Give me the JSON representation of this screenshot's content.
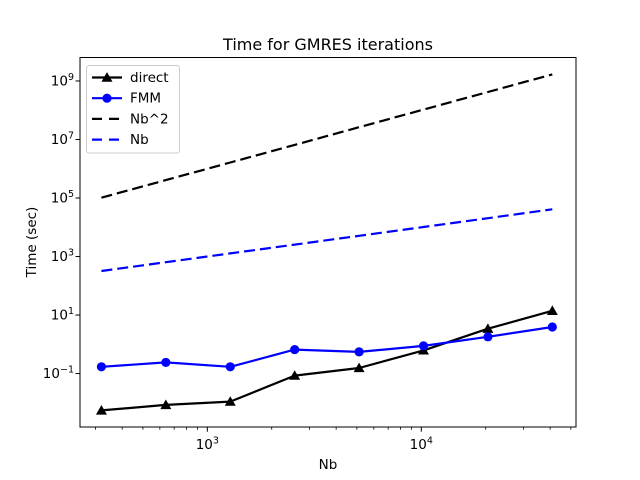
{
  "chart_data": {
    "type": "line",
    "title": "Time for GMRES iterations",
    "xlabel": "Nb",
    "ylabel": "Time (sec)",
    "x_scale": "log",
    "y_scale": "log",
    "grid": false,
    "legend_position": "upper-left",
    "xlim_log10": [
      2.405,
      4.723
    ],
    "ylim_log10": [
      -2.834,
      9.799
    ],
    "x_major_ticks": [
      1000,
      10000
    ],
    "y_major_ticks": [
      0.1,
      10.0,
      1000.0,
      100000.0,
      10000000.0,
      1000000000.0
    ],
    "x": [
      320,
      640,
      1280,
      2560,
      5120,
      10240,
      20480,
      40960
    ],
    "series": [
      {
        "name": "direct",
        "color": "#000000",
        "line": "solid",
        "marker": "triangle",
        "values": [
          0.0055,
          0.0085,
          0.011,
          0.085,
          0.155,
          0.62,
          3.4,
          14
        ]
      },
      {
        "name": "FMM",
        "color": "#0000ff",
        "line": "solid",
        "marker": "circle",
        "values": [
          0.17,
          0.24,
          0.17,
          0.66,
          0.55,
          0.88,
          1.8,
          3.9
        ]
      },
      {
        "name": "Nb^2",
        "color": "#000000",
        "line": "dashed",
        "marker": "none",
        "values": [
          102400,
          409600,
          1638400,
          6553600,
          26214400,
          104857600,
          419430400,
          1677721600
        ]
      },
      {
        "name": "Nb",
        "color": "#0000ff",
        "line": "dashed",
        "marker": "none",
        "values": [
          320,
          640,
          1280,
          2560,
          5120,
          10240,
          20480,
          40960
        ]
      }
    ]
  }
}
